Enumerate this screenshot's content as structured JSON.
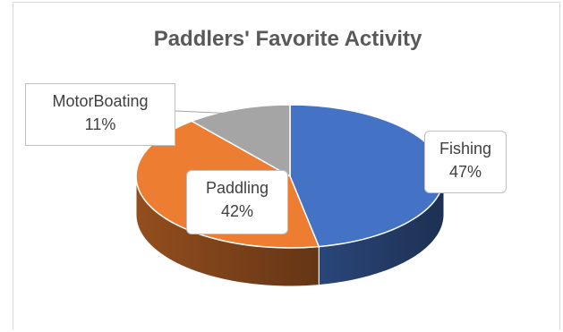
{
  "chart_data": {
    "type": "pie",
    "title": "Paddlers' Favorite Activity",
    "slices": [
      {
        "label": "Fishing",
        "value": 47,
        "display": "47%",
        "color": "#4472c4"
      },
      {
        "label": "Paddling",
        "value": 42,
        "display": "42%",
        "color": "#ed7d31"
      },
      {
        "label": "MotorBoating",
        "value": 11,
        "display": "11%",
        "color": "#a5a5a5"
      }
    ],
    "legend": "none",
    "style": "3d"
  }
}
